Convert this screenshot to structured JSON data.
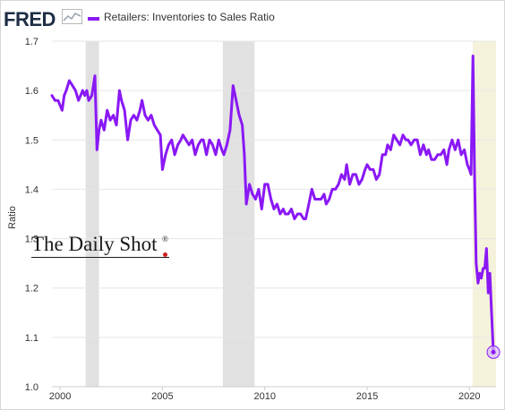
{
  "header": {
    "logo_text": "FRED",
    "logo_mark": "sparkline-chart-icon",
    "legend_label": "Retailers: Inventories to Sales Ratio",
    "legend_color": "#8a18f5"
  },
  "watermark": {
    "text": "The Daily Shot",
    "registered": "®"
  },
  "chart_data": {
    "type": "line",
    "title": "",
    "xlabel": "",
    "ylabel": "Ratio",
    "xlim": [
      1999.6,
      2021.3
    ],
    "ylim": [
      1.0,
      1.7
    ],
    "x_ticks": [
      "2000",
      "2005",
      "2010",
      "2015",
      "2020"
    ],
    "y_ticks": [
      "1.0",
      "1.1",
      "1.2",
      "1.3",
      "1.4",
      "1.5",
      "1.6",
      "1.7"
    ],
    "grid": "horizontal",
    "recessions": [
      {
        "start": 2001.25,
        "end": 2001.9
      },
      {
        "start": 2007.95,
        "end": 2009.5
      },
      {
        "start": 2020.15,
        "end": 2021.3,
        "style": "current"
      }
    ],
    "recession_color": "#e1e1e1",
    "current_band_color": "#f5f2dc",
    "series": [
      {
        "color": "#8a18f5",
        "x": [
          1999.6,
          1999.75,
          1999.9,
          2000.0,
          2000.1,
          2000.2,
          2000.3,
          2000.45,
          2000.6,
          2000.75,
          2000.9,
          2001.0,
          2001.1,
          2001.2,
          2001.3,
          2001.4,
          2001.55,
          2001.7,
          2001.8,
          2001.9,
          2002.0,
          2002.15,
          2002.3,
          2002.45,
          2002.6,
          2002.75,
          2002.9,
          2003.0,
          2003.15,
          2003.3,
          2003.45,
          2003.6,
          2003.75,
          2003.9,
          2004.0,
          2004.15,
          2004.3,
          2004.45,
          2004.6,
          2004.75,
          2004.9,
          2005.0,
          2005.15,
          2005.3,
          2005.45,
          2005.6,
          2005.75,
          2005.9,
          2006.0,
          2006.15,
          2006.3,
          2006.45,
          2006.6,
          2006.75,
          2006.9,
          2007.0,
          2007.15,
          2007.3,
          2007.45,
          2007.6,
          2007.75,
          2007.9,
          2008.0,
          2008.15,
          2008.3,
          2008.45,
          2008.6,
          2008.75,
          2008.9,
          2009.0,
          2009.1,
          2009.25,
          2009.4,
          2009.55,
          2009.7,
          2009.85,
          2010.0,
          2010.15,
          2010.3,
          2010.45,
          2010.6,
          2010.75,
          2010.9,
          2011.0,
          2011.15,
          2011.3,
          2011.45,
          2011.6,
          2011.75,
          2011.9,
          2012.0,
          2012.15,
          2012.3,
          2012.45,
          2012.6,
          2012.75,
          2012.9,
          2013.0,
          2013.15,
          2013.3,
          2013.45,
          2013.6,
          2013.75,
          2013.9,
          2014.0,
          2014.15,
          2014.3,
          2014.45,
          2014.6,
          2014.75,
          2014.9,
          2015.0,
          2015.15,
          2015.3,
          2015.45,
          2015.6,
          2015.75,
          2015.9,
          2016.0,
          2016.15,
          2016.3,
          2016.45,
          2016.6,
          2016.75,
          2016.9,
          2017.0,
          2017.15,
          2017.3,
          2017.45,
          2017.6,
          2017.75,
          2017.9,
          2018.0,
          2018.15,
          2018.3,
          2018.45,
          2018.6,
          2018.75,
          2018.9,
          2019.0,
          2019.15,
          2019.3,
          2019.45,
          2019.6,
          2019.75,
          2019.9,
          2020.0,
          2020.08,
          2020.17,
          2020.25,
          2020.33,
          2020.42,
          2020.5,
          2020.58,
          2020.67,
          2020.75,
          2020.83,
          2020.92,
          2021.0,
          2021.08,
          2021.17
        ],
        "y": [
          1.59,
          1.58,
          1.58,
          1.57,
          1.56,
          1.59,
          1.6,
          1.62,
          1.61,
          1.6,
          1.58,
          1.59,
          1.6,
          1.59,
          1.6,
          1.58,
          1.59,
          1.63,
          1.48,
          1.52,
          1.54,
          1.52,
          1.56,
          1.54,
          1.55,
          1.53,
          1.6,
          1.58,
          1.56,
          1.5,
          1.54,
          1.55,
          1.54,
          1.56,
          1.58,
          1.55,
          1.54,
          1.55,
          1.53,
          1.52,
          1.51,
          1.44,
          1.47,
          1.49,
          1.5,
          1.47,
          1.49,
          1.5,
          1.51,
          1.5,
          1.49,
          1.5,
          1.47,
          1.49,
          1.5,
          1.5,
          1.47,
          1.5,
          1.49,
          1.47,
          1.5,
          1.48,
          1.47,
          1.49,
          1.52,
          1.61,
          1.58,
          1.55,
          1.53,
          1.47,
          1.37,
          1.41,
          1.39,
          1.38,
          1.4,
          1.36,
          1.41,
          1.41,
          1.38,
          1.36,
          1.37,
          1.35,
          1.36,
          1.35,
          1.35,
          1.36,
          1.34,
          1.35,
          1.35,
          1.34,
          1.34,
          1.37,
          1.4,
          1.38,
          1.38,
          1.38,
          1.39,
          1.37,
          1.38,
          1.4,
          1.4,
          1.41,
          1.43,
          1.42,
          1.45,
          1.41,
          1.43,
          1.43,
          1.41,
          1.42,
          1.44,
          1.45,
          1.44,
          1.44,
          1.42,
          1.43,
          1.47,
          1.47,
          1.49,
          1.48,
          1.51,
          1.5,
          1.49,
          1.51,
          1.5,
          1.5,
          1.49,
          1.5,
          1.5,
          1.47,
          1.49,
          1.47,
          1.48,
          1.46,
          1.46,
          1.47,
          1.47,
          1.48,
          1.45,
          1.48,
          1.5,
          1.48,
          1.5,
          1.47,
          1.48,
          1.45,
          1.44,
          1.43,
          1.67,
          1.43,
          1.25,
          1.21,
          1.23,
          1.22,
          1.24,
          1.24,
          1.28,
          1.19,
          1.23,
          1.15,
          1.07
        ]
      }
    ]
  }
}
